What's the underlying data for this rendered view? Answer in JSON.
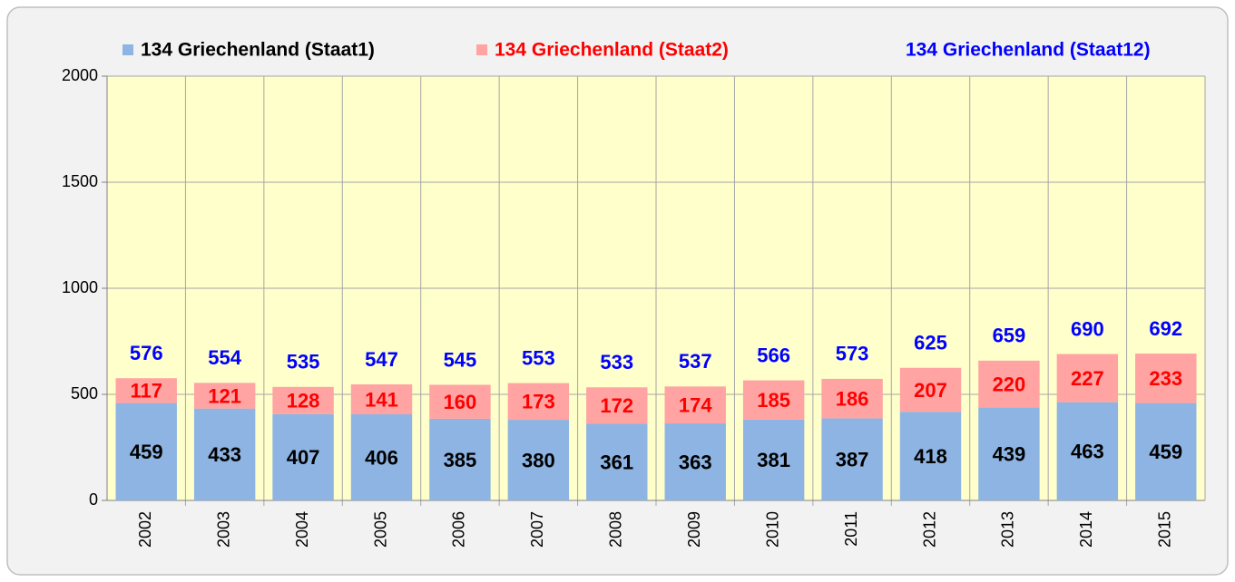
{
  "chart_data": {
    "type": "stacked_bar",
    "categories": [
      "2002",
      "2003",
      "2004",
      "2005",
      "2006",
      "2007",
      "2008",
      "2009",
      "2010",
      "2011",
      "2012",
      "2013",
      "2014",
      "2015"
    ],
    "series": [
      {
        "name": "134 Griechenland (Staat1)",
        "color": "#8db4e2",
        "label_color": "#000000",
        "kind": "bar",
        "values": [
          459,
          433,
          407,
          406,
          385,
          380,
          361,
          363,
          381,
          387,
          418,
          439,
          463,
          459
        ]
      },
      {
        "name": "134 Griechenland (Staat2)",
        "color": "#ffa3a3",
        "label_color": "#ff0000",
        "kind": "bar",
        "values": [
          117,
          121,
          128,
          141,
          160,
          173,
          172,
          174,
          185,
          186,
          207,
          220,
          227,
          233
        ]
      },
      {
        "name": "134 Griechenland (Staat12)",
        "color": "#0000ff",
        "label_color": "#0000ff",
        "kind": "label",
        "values": [
          576,
          554,
          535,
          547,
          545,
          553,
          533,
          537,
          566,
          573,
          625,
          659,
          690,
          692
        ]
      }
    ],
    "ylim": [
      0,
      2000
    ],
    "yticks": [
      0,
      500,
      1000,
      1500,
      2000
    ],
    "grid": true,
    "plot_background": "#ffffcc"
  }
}
